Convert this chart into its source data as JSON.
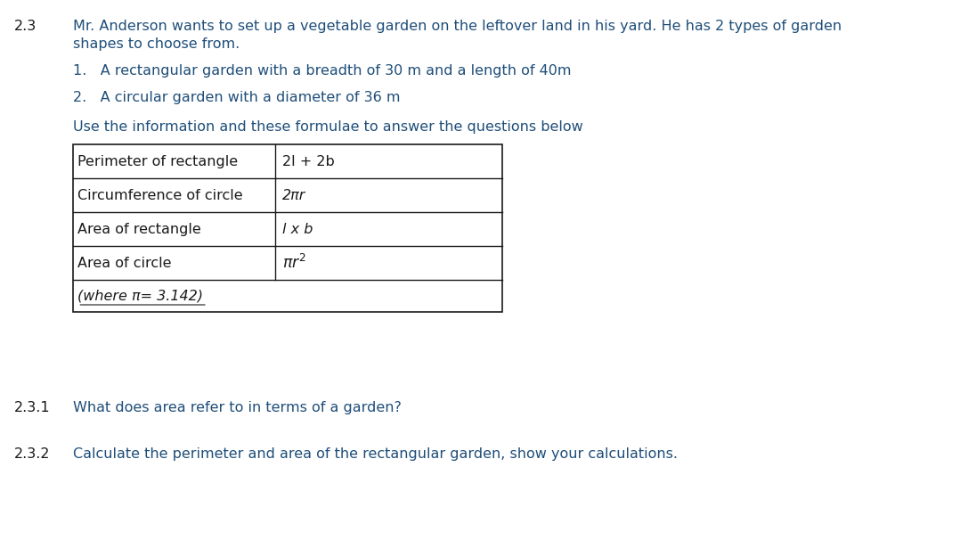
{
  "bg_color": "#ffffff",
  "text_color_blue": "#1F4E79",
  "text_color_dark": "#1a1a1a",
  "text_color_red": "#C00000",
  "section_number": "2.3",
  "intro_text_line1": "Mr. Anderson wants to set up a vegetable garden on the leftover land in his yard. He has 2 types of garden",
  "intro_text_line2": "shapes to choose from.",
  "item1": "1.   A rectangular garden with a breadth of 30 m and a length of 40m",
  "item2": "2.   A circular garden with a diameter of 36 m",
  "use_text": "Use the information and these formulae to answer the questions below",
  "table_rows": [
    [
      "Perimeter of rectangle",
      "2l + 2b"
    ],
    [
      "Circumference of circle",
      "2πr"
    ],
    [
      "Area of rectangle",
      "l x b"
    ],
    [
      "Area of circle",
      "πr²"
    ]
  ],
  "table_footer": "(where π= 3.142)",
  "sub1_num": "2.3.1",
  "sub1_text": "What does area refer to in terms of a garden?",
  "sub2_num": "2.3.2",
  "sub2_text": "Calculate the perimeter and area of the rectangular garden, show your calculations.",
  "font_size_main": 11.5,
  "font_size_section": 11.5,
  "font_size_table": 11.5,
  "font_size_sub": 11.5
}
